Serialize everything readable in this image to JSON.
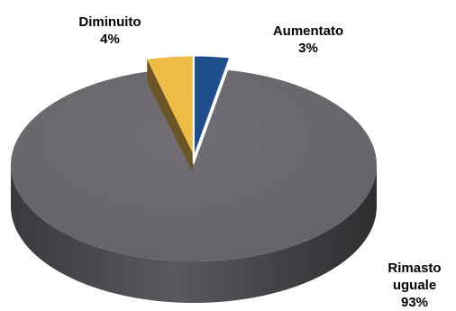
{
  "chart_data": {
    "type": "pie",
    "title": "",
    "slices": [
      {
        "label": "Aumentato",
        "value": 3,
        "value_label": "3%",
        "color": "#1f4e8c",
        "side_color": "#143464",
        "exploded": true
      },
      {
        "label": "Rimasto uguale",
        "label_lines": [
          "Rimasto",
          "uguale"
        ],
        "value": 93,
        "value_label": "93%",
        "color": "#6a686d",
        "side_color": "#4a494d",
        "exploded": false
      },
      {
        "label": "Diminuito",
        "value": 4,
        "value_label": "4%",
        "color": "#efbd45",
        "side_color": "#6b5426",
        "exploded": true
      }
    ],
    "style": "3d-pie"
  }
}
